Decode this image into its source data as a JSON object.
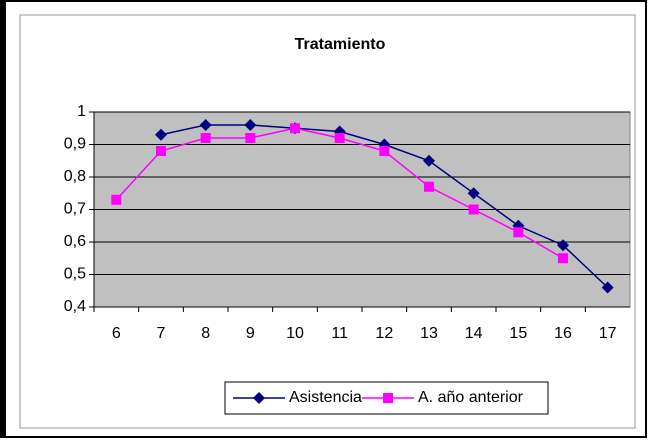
{
  "chart_data": {
    "type": "line",
    "title": "Tratamiento",
    "categories": [
      "6",
      "7",
      "8",
      "9",
      "10",
      "11",
      "12",
      "13",
      "14",
      "15",
      "16",
      "17"
    ],
    "series": [
      {
        "name": "Asistencia",
        "color": "#000080",
        "marker": "diamond",
        "values": [
          null,
          0.93,
          0.96,
          0.96,
          0.95,
          0.94,
          0.9,
          0.85,
          0.75,
          0.65,
          0.59,
          0.46
        ]
      },
      {
        "name": "A. año anterior",
        "color": "#ff00ff",
        "marker": "square",
        "values": [
          0.73,
          0.88,
          0.92,
          0.92,
          0.95,
          0.92,
          0.88,
          0.77,
          0.7,
          0.63,
          0.55,
          null
        ]
      }
    ],
    "ylim": [
      0.4,
      1
    ],
    "yticks": [
      {
        "value": 0.4,
        "label": "0,4"
      },
      {
        "value": 0.5,
        "label": "0,5"
      },
      {
        "value": 0.6,
        "label": "0,6"
      },
      {
        "value": 0.7,
        "label": "0,7"
      },
      {
        "value": 0.8,
        "label": "0,8"
      },
      {
        "value": 0.9,
        "label": "0,9"
      },
      1
    ],
    "grid": true,
    "legend": "bottom"
  }
}
